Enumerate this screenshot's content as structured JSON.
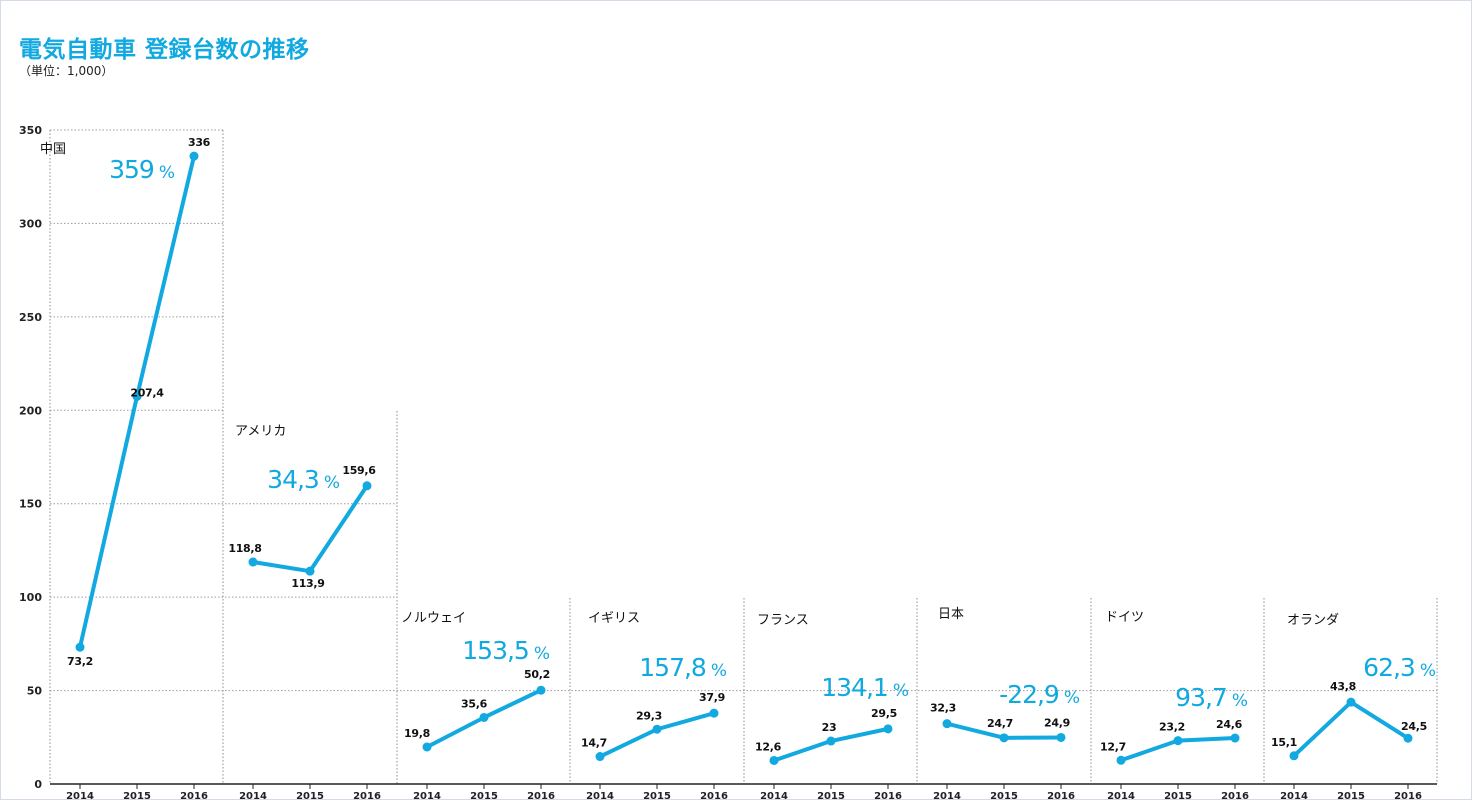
{
  "title": "電気自動車 登録台数の推移",
  "unit_note": "（単位：1,000）",
  "colors": {
    "accent": "#11a9e0",
    "text": "#111111",
    "gridline": "#9a9a9a"
  },
  "chart_data": {
    "type": "line",
    "title": "電気自動車 登録台数の推移",
    "ylabel": "",
    "ylim": [
      0,
      350
    ],
    "yticks": [
      "0",
      "50",
      "100",
      "150",
      "200",
      "250",
      "300",
      "350"
    ],
    "years": [
      "2014",
      "2015",
      "2016"
    ],
    "grid": true,
    "series": [
      {
        "name": "中国",
        "values": [
          73.2,
          207.4,
          336
        ],
        "labels": [
          "73,2",
          "207,4",
          "336"
        ],
        "growth_value": "359",
        "growth_sign": "%"
      },
      {
        "name": "アメリカ",
        "values": [
          118.8,
          113.9,
          159.6
        ],
        "labels": [
          "118,8",
          "113,9",
          "159,6"
        ],
        "growth_value": "34,3",
        "growth_sign": "%"
      },
      {
        "name": "ノルウェイ",
        "values": [
          19.8,
          35.6,
          50.2
        ],
        "labels": [
          "19,8",
          "35,6",
          "50,2"
        ],
        "growth_value": "153,5",
        "growth_sign": "%"
      },
      {
        "name": "イギリス",
        "values": [
          14.7,
          29.3,
          37.9
        ],
        "labels": [
          "14,7",
          "29,3",
          "37,9"
        ],
        "growth_value": "157,8",
        "growth_sign": "%"
      },
      {
        "name": "フランス",
        "values": [
          12.6,
          23,
          29.5
        ],
        "labels": [
          "12,6",
          "23",
          "29,5"
        ],
        "growth_value": "134,1",
        "growth_sign": "%"
      },
      {
        "name": "日本",
        "values": [
          32.3,
          24.7,
          24.9
        ],
        "labels": [
          "32,3",
          "24,7",
          "24,9"
        ],
        "growth_value": "-22,9",
        "growth_sign": "%"
      },
      {
        "name": "ドイツ",
        "values": [
          12.7,
          23.2,
          24.6
        ],
        "labels": [
          "12,7",
          "23,2",
          "24,6"
        ],
        "growth_value": "93,7",
        "growth_sign": "%"
      },
      {
        "name": "オランダ",
        "values": [
          15.1,
          43.8,
          24.5
        ],
        "labels": [
          "15,1",
          "43,8",
          "24,5"
        ],
        "growth_value": "62,3",
        "growth_sign": "%"
      }
    ]
  }
}
